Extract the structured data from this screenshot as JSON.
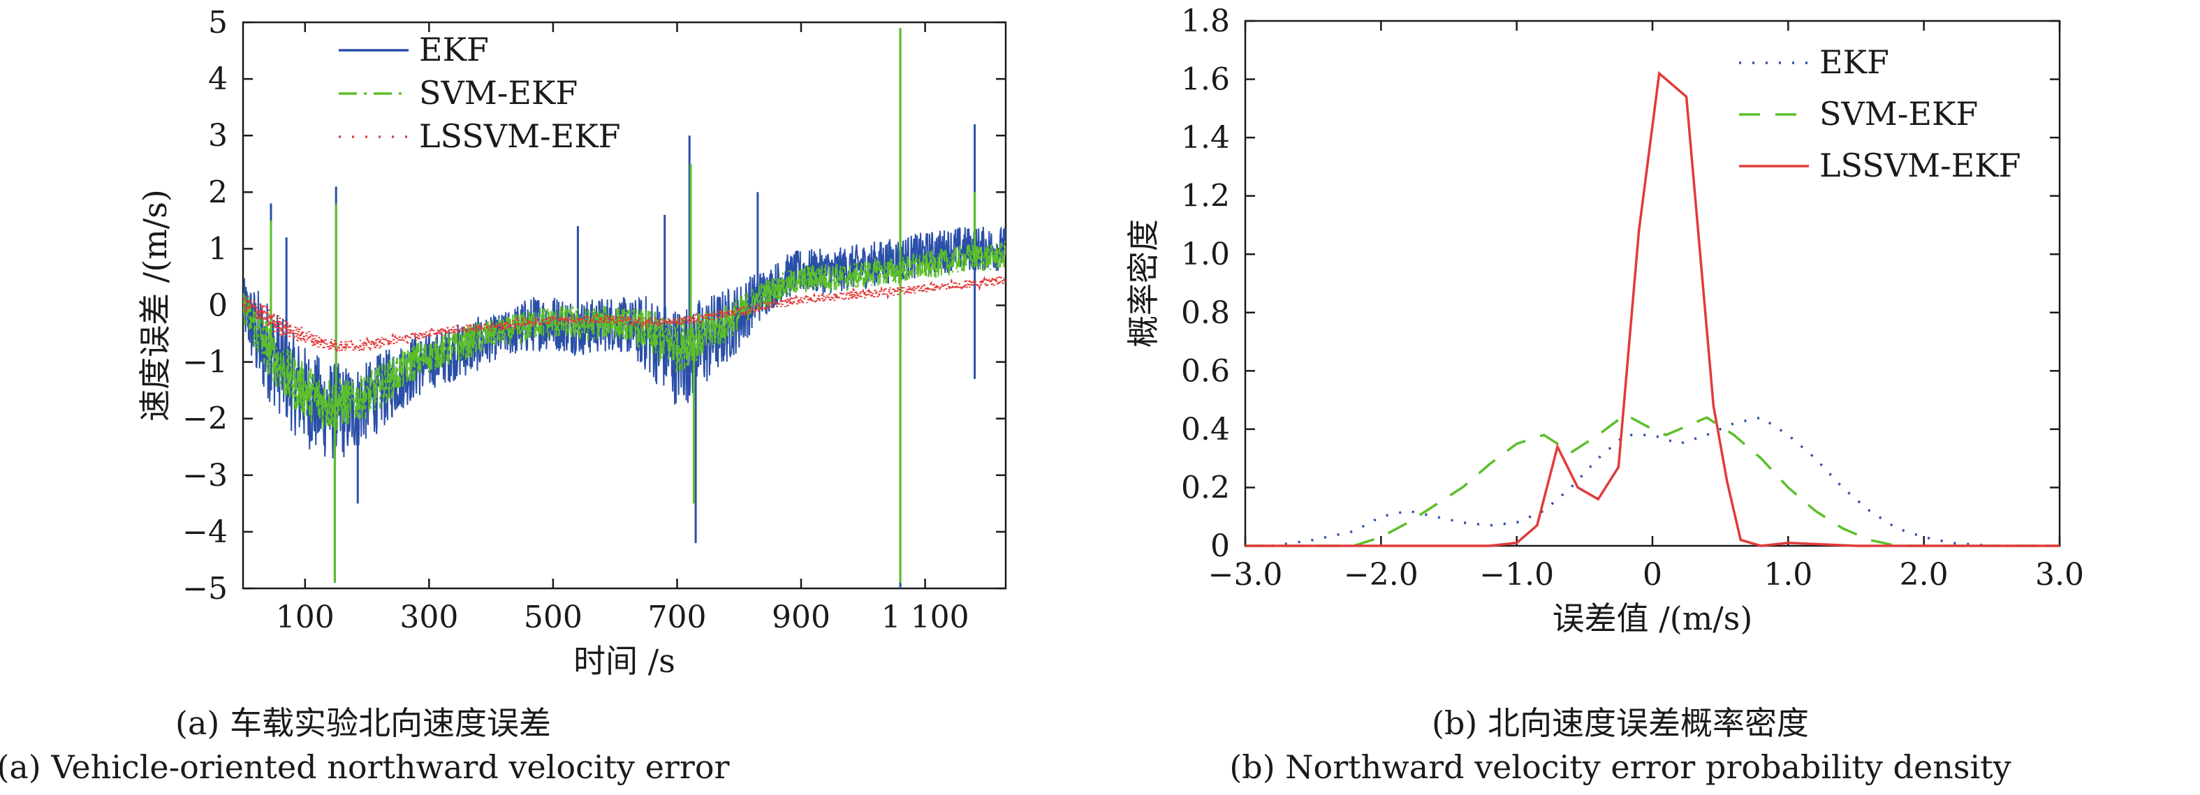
{
  "chart_data": [
    {
      "type": "line",
      "xlabel": "时间 /s",
      "ylabel": "速度误差 /(m/s)",
      "xlim": [
        0,
        1230
      ],
      "ylim": [
        -5,
        5
      ],
      "x_ticks": [
        100,
        300,
        500,
        700,
        900,
        1100
      ],
      "x_tick_labels": [
        "100",
        "300",
        "500",
        "700",
        "900",
        "1 100"
      ],
      "y_ticks": [
        -5,
        -4,
        -3,
        -2,
        -1,
        0,
        1,
        2,
        3,
        4,
        5
      ],
      "y_tick_labels": [
        "−5",
        "−4",
        "−3",
        "−2",
        "−1",
        "0",
        "1",
        "2",
        "3",
        "4",
        "5"
      ],
      "legend": "top-left",
      "caption_cn": "(a) 车载实验北向速度误差",
      "caption_en": "(a) Vehicle-oriented northward velocity error",
      "series": [
        {
          "name": "EKF",
          "color": "#2a4fa8",
          "style": "solid",
          "x": [
            0,
            25,
            50,
            75,
            100,
            125,
            150,
            175,
            200,
            225,
            250,
            275,
            300,
            325,
            350,
            375,
            400,
            425,
            450,
            475,
            500,
            525,
            550,
            575,
            600,
            625,
            650,
            675,
            700,
            725,
            750,
            775,
            800,
            825,
            850,
            875,
            900,
            925,
            950,
            975,
            1000,
            1025,
            1050,
            1075,
            1100,
            1125,
            1150,
            1175,
            1200,
            1230
          ],
          "y": [
            0.0,
            -0.6,
            -0.9,
            -1.3,
            -1.6,
            -1.8,
            -1.9,
            -1.85,
            -1.7,
            -1.5,
            -1.3,
            -1.1,
            -1.0,
            -0.9,
            -0.8,
            -0.7,
            -0.6,
            -0.5,
            -0.4,
            -0.3,
            -0.3,
            -0.35,
            -0.4,
            -0.35,
            -0.3,
            -0.4,
            -0.5,
            -0.7,
            -0.9,
            -0.8,
            -0.6,
            -0.4,
            -0.2,
            0.1,
            0.3,
            0.5,
            0.6,
            0.6,
            0.6,
            0.65,
            0.7,
            0.75,
            0.8,
            0.85,
            0.9,
            0.95,
            1.0,
            1.0,
            1.0,
            1.0
          ],
          "noise_amplitude": [
            0.5,
            0.9,
            0.9,
            0.9,
            0.9,
            0.9,
            0.9,
            0.8,
            0.7,
            0.7,
            0.6,
            0.6,
            0.5,
            0.5,
            0.5,
            0.5,
            0.4,
            0.4,
            0.5,
            0.5,
            0.5,
            0.5,
            0.5,
            0.5,
            0.5,
            0.5,
            0.7,
            0.8,
            0.9,
            0.9,
            0.8,
            0.7,
            0.6,
            0.5,
            0.4,
            0.4,
            0.4,
            0.4,
            0.4,
            0.4,
            0.4,
            0.4,
            0.4,
            0.4,
            0.4,
            0.4,
            0.4,
            0.4,
            0.4,
            0.4
          ],
          "spikes": [
            [
              45,
              1.8
            ],
            [
              45,
              -1.5
            ],
            [
              70,
              1.2
            ],
            [
              148,
              -4.9
            ],
            [
              150,
              2.1
            ],
            [
              185,
              -3.5
            ],
            [
              540,
              1.4
            ],
            [
              680,
              1.6
            ],
            [
              720,
              3.0
            ],
            [
              730,
              -4.2
            ],
            [
              830,
              2.0
            ],
            [
              1060,
              4.9
            ],
            [
              1060,
              -5.0
            ],
            [
              1060,
              -0.7
            ],
            [
              1180,
              3.2
            ],
            [
              1180,
              -1.3
            ]
          ]
        },
        {
          "name": "SVM-EKF",
          "color": "#5cbf2a",
          "style": "dashdot",
          "x": [
            0,
            25,
            50,
            75,
            100,
            125,
            150,
            175,
            200,
            225,
            250,
            275,
            300,
            325,
            350,
            375,
            400,
            425,
            450,
            475,
            500,
            525,
            550,
            575,
            600,
            625,
            650,
            675,
            700,
            725,
            750,
            775,
            800,
            825,
            850,
            875,
            900,
            925,
            950,
            975,
            1000,
            1025,
            1050,
            1075,
            1100,
            1125,
            1150,
            1175,
            1200,
            1230
          ],
          "y": [
            0.0,
            -0.5,
            -0.9,
            -1.3,
            -1.5,
            -1.7,
            -1.75,
            -1.7,
            -1.6,
            -1.4,
            -1.2,
            -1.0,
            -0.9,
            -0.8,
            -0.7,
            -0.6,
            -0.5,
            -0.45,
            -0.4,
            -0.3,
            -0.3,
            -0.3,
            -0.35,
            -0.3,
            -0.3,
            -0.35,
            -0.45,
            -0.6,
            -0.7,
            -0.6,
            -0.5,
            -0.35,
            -0.15,
            0.1,
            0.25,
            0.35,
            0.45,
            0.5,
            0.5,
            0.5,
            0.55,
            0.6,
            0.6,
            0.65,
            0.7,
            0.75,
            0.8,
            0.85,
            0.85,
            0.9
          ],
          "noise_amplitude": [
            0.3,
            0.5,
            0.5,
            0.5,
            0.5,
            0.5,
            0.5,
            0.4,
            0.4,
            0.4,
            0.35,
            0.35,
            0.3,
            0.3,
            0.3,
            0.3,
            0.25,
            0.25,
            0.3,
            0.3,
            0.3,
            0.3,
            0.3,
            0.3,
            0.3,
            0.3,
            0.4,
            0.45,
            0.5,
            0.45,
            0.4,
            0.35,
            0.3,
            0.25,
            0.25,
            0.25,
            0.25,
            0.25,
            0.25,
            0.25,
            0.25,
            0.25,
            0.25,
            0.25,
            0.25,
            0.25,
            0.25,
            0.25,
            0.25,
            0.25
          ],
          "spikes": [
            [
              45,
              1.5
            ],
            [
              148,
              -4.9
            ],
            [
              150,
              1.8
            ],
            [
              722,
              2.5
            ],
            [
              727,
              -3.5
            ],
            [
              1060,
              4.9
            ],
            [
              1060,
              -4.9
            ],
            [
              1180,
              2.0
            ]
          ]
        },
        {
          "name": "LSSVM-EKF",
          "color": "#e23a3a",
          "style": "dotted",
          "x": [
            0,
            25,
            50,
            75,
            100,
            125,
            150,
            175,
            200,
            225,
            250,
            275,
            300,
            325,
            350,
            375,
            400,
            425,
            450,
            475,
            500,
            525,
            550,
            575,
            600,
            625,
            650,
            675,
            700,
            725,
            750,
            775,
            800,
            825,
            850,
            875,
            900,
            925,
            950,
            975,
            1000,
            1025,
            1050,
            1075,
            1100,
            1125,
            1150,
            1175,
            1200,
            1230
          ],
          "y": [
            0.05,
            -0.1,
            -0.3,
            -0.45,
            -0.55,
            -0.65,
            -0.7,
            -0.72,
            -0.7,
            -0.65,
            -0.6,
            -0.55,
            -0.5,
            -0.45,
            -0.42,
            -0.4,
            -0.38,
            -0.35,
            -0.3,
            -0.28,
            -0.25,
            -0.25,
            -0.25,
            -0.25,
            -0.25,
            -0.28,
            -0.3,
            -0.3,
            -0.28,
            -0.25,
            -0.2,
            -0.15,
            -0.1,
            -0.05,
            0.0,
            0.05,
            0.1,
            0.12,
            0.15,
            0.18,
            0.2,
            0.22,
            0.25,
            0.28,
            0.3,
            0.32,
            0.35,
            0.38,
            0.4,
            0.45
          ],
          "noise_amplitude": [
            0.15,
            0.2,
            0.2,
            0.15,
            0.15,
            0.12,
            0.12,
            0.1,
            0.1,
            0.1,
            0.08,
            0.08,
            0.08,
            0.08,
            0.08,
            0.08,
            0.08,
            0.08,
            0.08,
            0.08,
            0.08,
            0.08,
            0.08,
            0.08,
            0.08,
            0.08,
            0.08,
            0.08,
            0.08,
            0.08,
            0.08,
            0.08,
            0.08,
            0.08,
            0.08,
            0.08,
            0.08,
            0.08,
            0.08,
            0.08,
            0.08,
            0.08,
            0.08,
            0.08,
            0.08,
            0.08,
            0.08,
            0.08,
            0.08,
            0.08
          ],
          "spikes": []
        }
      ]
    },
    {
      "type": "line",
      "xlabel": "误差值 /(m/s)",
      "ylabel": "概率密度",
      "xlim": [
        -3.0,
        3.0
      ],
      "ylim": [
        0,
        1.8
      ],
      "x_ticks": [
        -3.0,
        -2.0,
        -1.0,
        0.0,
        1.0,
        2.0,
        3.0
      ],
      "x_tick_labels": [
        "−3.0",
        "−2.0",
        "−1.0",
        "0",
        "1.0",
        "2.0",
        "3.0"
      ],
      "y_ticks": [
        0,
        0.2,
        0.4,
        0.6,
        0.8,
        1.0,
        1.2,
        1.4,
        1.6,
        1.8
      ],
      "y_tick_labels": [
        "0",
        "0.2",
        "0.4",
        "0.6",
        "0.8",
        "1.0",
        "1.2",
        "1.4",
        "1.6",
        "1.8"
      ],
      "legend": "top-right",
      "caption_cn": "(b) 北向速度误差概率密度",
      "caption_en": "(b) Northward velocity error probability density",
      "series": [
        {
          "name": "EKF",
          "color": "#2a4fa8",
          "style": "dotted",
          "x": [
            -3.0,
            -2.8,
            -2.5,
            -2.2,
            -2.0,
            -1.8,
            -1.6,
            -1.4,
            -1.2,
            -1.0,
            -0.8,
            -0.6,
            -0.4,
            -0.2,
            0.0,
            0.2,
            0.4,
            0.6,
            0.8,
            1.0,
            1.2,
            1.4,
            1.6,
            1.8,
            2.0,
            2.2,
            2.5,
            2.8,
            3.0
          ],
          "y": [
            0.0,
            0.0,
            0.02,
            0.05,
            0.1,
            0.12,
            0.1,
            0.08,
            0.07,
            0.08,
            0.12,
            0.2,
            0.3,
            0.38,
            0.38,
            0.35,
            0.38,
            0.42,
            0.44,
            0.38,
            0.3,
            0.2,
            0.12,
            0.06,
            0.03,
            0.01,
            0.0,
            0.0,
            0.0
          ]
        },
        {
          "name": "SVM-EKF",
          "color": "#5cbf2a",
          "style": "dashed",
          "x": [
            -3.0,
            -2.5,
            -2.2,
            -2.0,
            -1.8,
            -1.6,
            -1.4,
            -1.2,
            -1.0,
            -0.8,
            -0.6,
            -0.4,
            -0.2,
            0.0,
            0.1,
            0.2,
            0.4,
            0.6,
            0.8,
            1.0,
            1.2,
            1.4,
            1.6,
            1.8,
            2.0,
            2.5,
            3.0
          ],
          "y": [
            0.0,
            0.0,
            0.0,
            0.03,
            0.08,
            0.14,
            0.2,
            0.28,
            0.35,
            0.38,
            0.32,
            0.38,
            0.45,
            0.4,
            0.38,
            0.4,
            0.44,
            0.38,
            0.3,
            0.2,
            0.12,
            0.06,
            0.02,
            0.0,
            0.0,
            0.0,
            0.0
          ]
        },
        {
          "name": "LSSVM-EKF",
          "color": "#e23a3a",
          "style": "solid",
          "x": [
            -3.0,
            -2.0,
            -1.2,
            -1.0,
            -0.85,
            -0.7,
            -0.55,
            -0.4,
            -0.25,
            -0.1,
            0.05,
            0.25,
            0.45,
            0.55,
            0.65,
            0.8,
            1.0,
            1.5,
            2.0,
            3.0
          ],
          "y": [
            0.0,
            0.0,
            0.0,
            0.01,
            0.07,
            0.34,
            0.2,
            0.16,
            0.27,
            1.08,
            1.62,
            1.54,
            0.48,
            0.22,
            0.02,
            0.0,
            0.01,
            0.0,
            0.0,
            0.0
          ]
        }
      ]
    }
  ]
}
